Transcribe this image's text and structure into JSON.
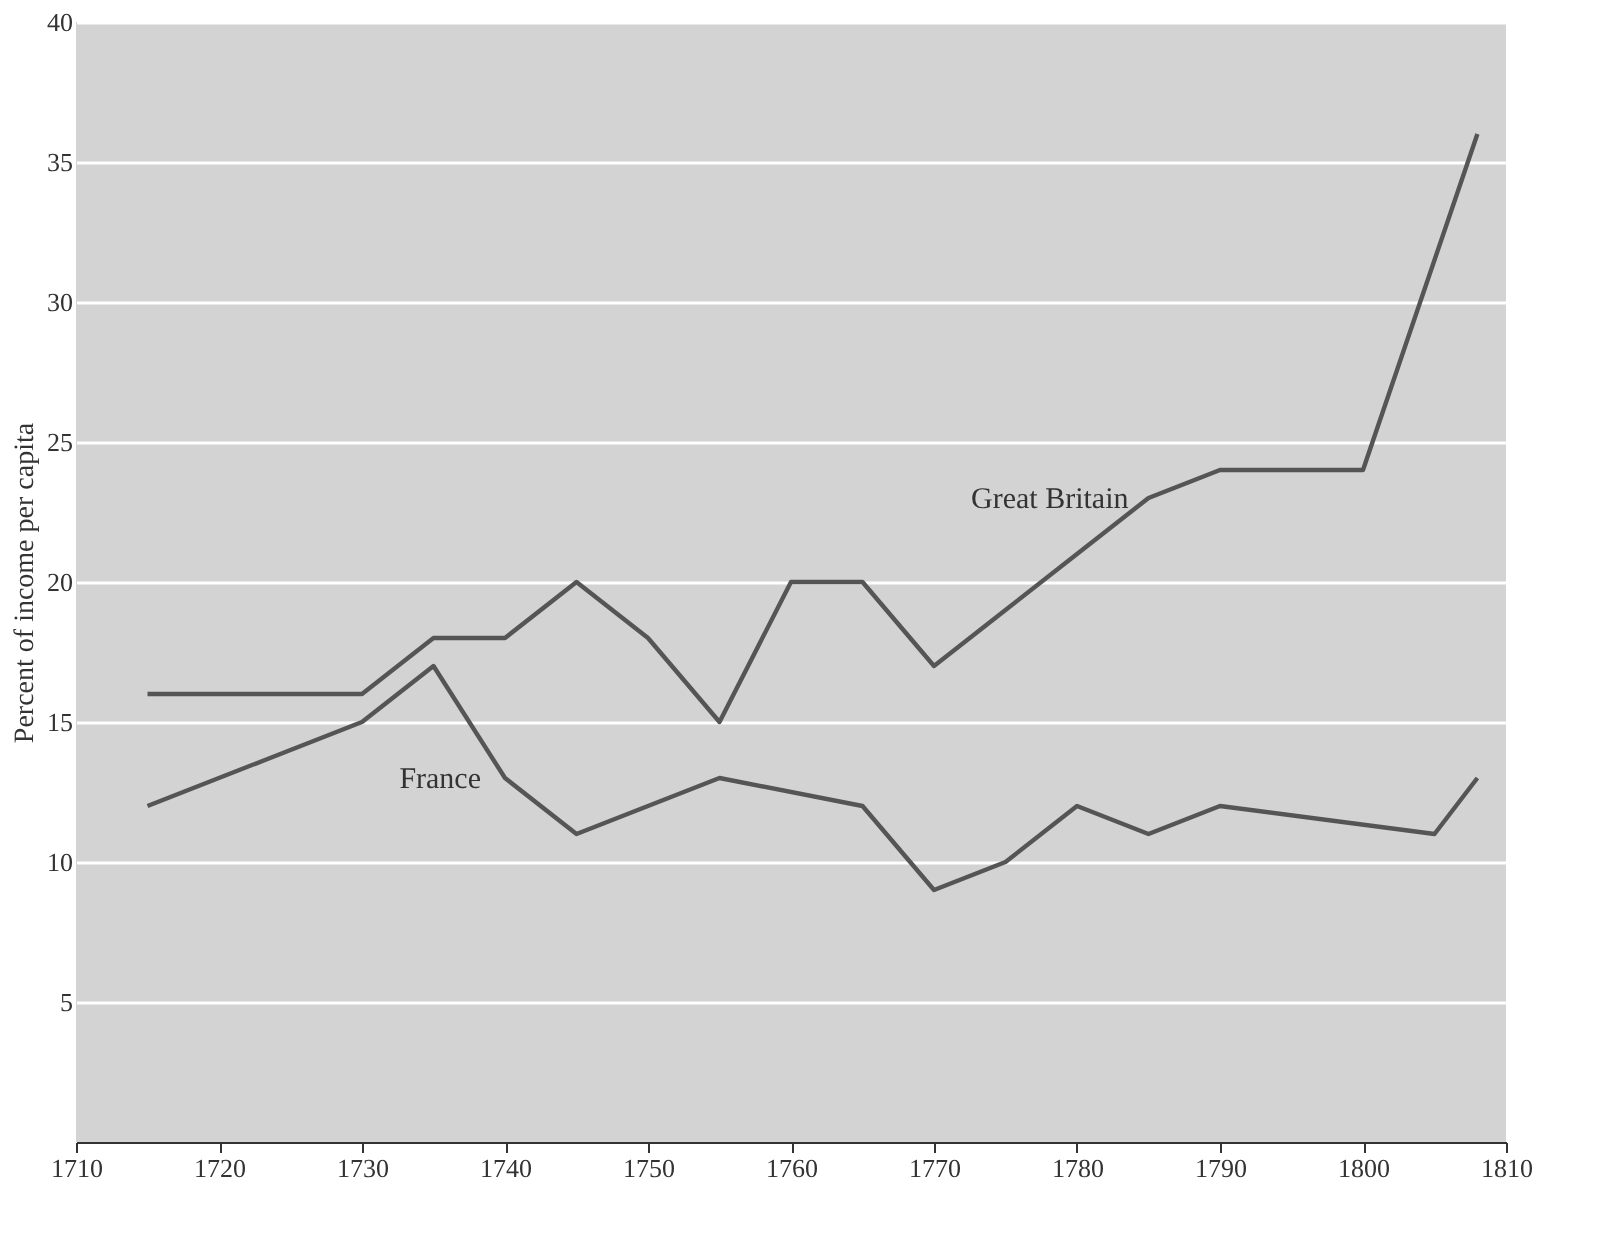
{
  "chart_data": {
    "type": "line",
    "ylabel": "Percent of income per capita",
    "xlim": [
      1710,
      1810
    ],
    "xticks": [
      1710,
      1720,
      1730,
      1740,
      1750,
      1760,
      1770,
      1780,
      1790,
      1800,
      1810
    ],
    "ylim": [
      0,
      40
    ],
    "yticks": [
      5,
      10,
      15,
      20,
      25,
      30,
      35,
      40
    ],
    "grid": "y",
    "series": [
      {
        "name": "Great Britain",
        "color": "#555555",
        "x": [
          1715,
          1730,
          1735,
          1740,
          1745,
          1750,
          1755,
          1760,
          1765,
          1770,
          1775,
          1780,
          1785,
          1790,
          1800,
          1808
        ],
        "values": [
          16,
          16,
          18,
          18,
          20,
          18,
          15,
          20,
          20,
          17,
          19,
          21,
          23,
          24,
          24,
          36
        ]
      },
      {
        "name": "France",
        "color": "#555555",
        "x": [
          1715,
          1725,
          1730,
          1735,
          1740,
          1745,
          1750,
          1755,
          1765,
          1770,
          1775,
          1780,
          1785,
          1790,
          1805,
          1808
        ],
        "values": [
          12,
          14,
          15,
          17,
          13,
          11,
          12,
          13,
          12,
          9,
          10,
          12,
          11,
          12,
          11,
          13
        ]
      }
    ]
  }
}
